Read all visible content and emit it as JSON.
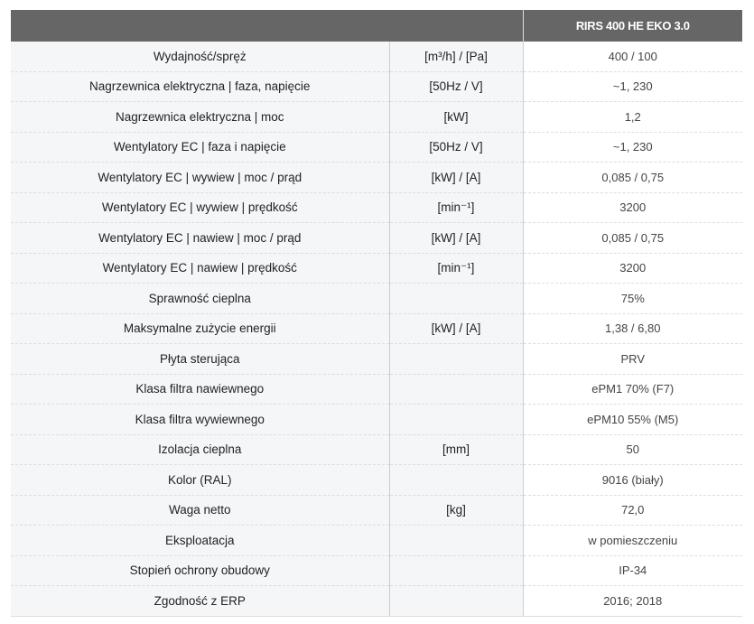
{
  "header": {
    "model": "RIRS 400 HE EKO 3.0"
  },
  "rows": [
    {
      "param": "Wydajność/spręż",
      "unit": "[m³/h] / [Pa]",
      "value": "400 / 100"
    },
    {
      "param": "Nagrzewnica elektryczna | faza, napięcie",
      "unit": "[50Hz / V]",
      "value": "~1, 230"
    },
    {
      "param": "Nagrzewnica elektryczna | moc",
      "unit": "[kW]",
      "value": "1,2"
    },
    {
      "param": "Wentylatory EC | faza i napięcie",
      "unit": "[50Hz / V]",
      "value": "~1, 230"
    },
    {
      "param": "Wentylatory EC | wywiew | moc / prąd",
      "unit": "[kW] / [A]",
      "value": "0,085 / 0,75"
    },
    {
      "param": "Wentylatory EC | wywiew | prędkość",
      "unit": "[min⁻¹]",
      "value": "3200"
    },
    {
      "param": "Wentylatory EC | nawiew | moc / prąd",
      "unit": "[kW] / [A]",
      "value": "0,085 / 0,75"
    },
    {
      "param": "Wentylatory EC | nawiew | prędkość",
      "unit": "[min⁻¹]",
      "value": "3200"
    },
    {
      "param": "Sprawność cieplna",
      "unit": "",
      "value": "75%"
    },
    {
      "param": "Maksymalne zużycie energii",
      "unit": "[kW] / [A]",
      "value": "1,38 / 6,80"
    },
    {
      "param": "Płyta sterująca",
      "unit": "",
      "value": "PRV"
    },
    {
      "param": "Klasa filtra nawiewnego",
      "unit": "",
      "value": "ePM1 70% (F7)"
    },
    {
      "param": "Klasa filtra wywiewnego",
      "unit": "",
      "value": "ePM10 55% (M5)"
    },
    {
      "param": "Izolacja cieplna",
      "unit": "[mm]",
      "value": "50"
    },
    {
      "param": "Kolor (RAL)",
      "unit": "",
      "value": "9016 (biały)"
    },
    {
      "param": "Waga netto",
      "unit": "[kg]",
      "value": "72,0"
    },
    {
      "param": "Eksploatacja",
      "unit": "",
      "value": "w pomieszczeniu"
    },
    {
      "param": "Stopień ochrony obudowy",
      "unit": "",
      "value": "IP-34"
    },
    {
      "param": "Zgodność z ERP",
      "unit": "",
      "value": "2016; 2018"
    }
  ]
}
